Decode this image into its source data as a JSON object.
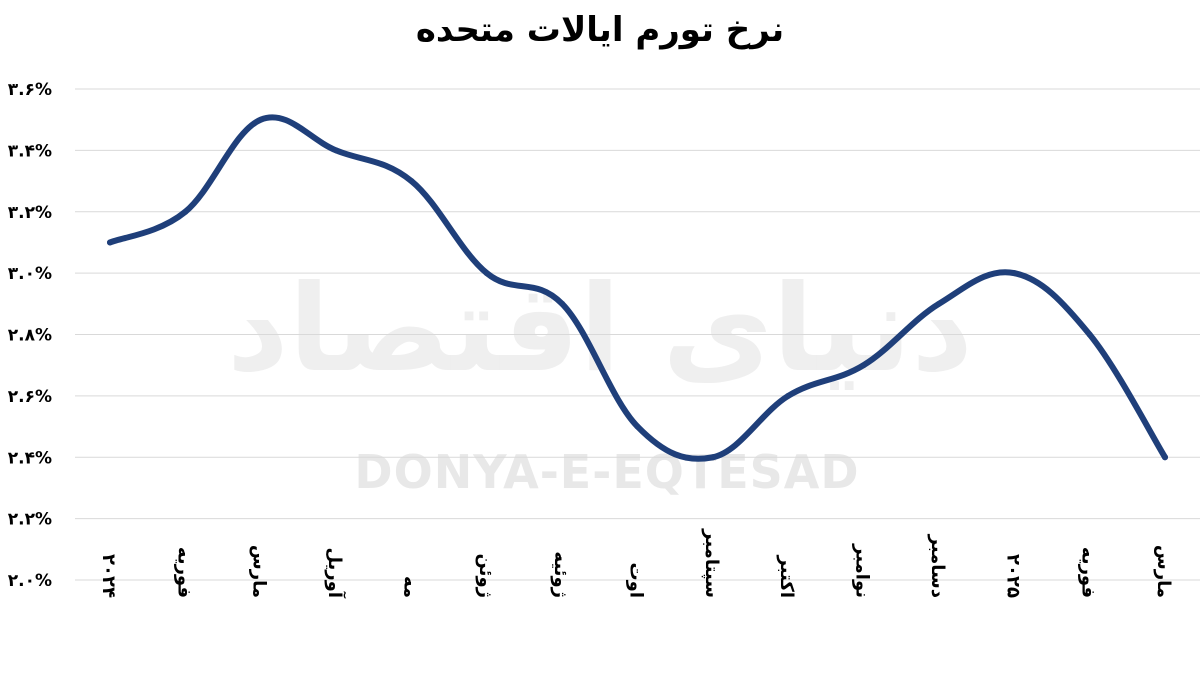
{
  "chart_data": {
    "type": "line",
    "title": "نرخ تورم ایالات متحده",
    "xlabel": "",
    "ylabel": "",
    "categories": [
      "۲۰۲۴",
      "فوریه",
      "مارس",
      "آوریل",
      "مه",
      "ژوئن",
      "ژوئیه",
      "اوت",
      "سپتامبر",
      "اکتبر",
      "نوامبر",
      "دسامبر",
      "۲۰۲۵",
      "فوریه",
      "مارس"
    ],
    "series": [
      {
        "name": "",
        "values": [
          3.1,
          3.2,
          3.5,
          3.4,
          3.3,
          3.0,
          2.9,
          2.5,
          2.4,
          2.6,
          2.7,
          2.9,
          3.0,
          2.8,
          2.4
        ]
      }
    ],
    "ylim": [
      2.0,
      3.6
    ],
    "yticks": [
      2.0,
      2.2,
      2.4,
      2.6,
      2.8,
      3.0,
      3.2,
      3.4,
      3.6
    ],
    "ytick_labels": [
      "۲.۰%",
      "۲.۲%",
      "۲.۴%",
      "۲.۶%",
      "۲.۸%",
      "۳.۰%",
      "۳.۲%",
      "۳.۴%",
      "۳.۶%"
    ],
    "grid": true,
    "legend": "none",
    "line_color": "#1f3f7a",
    "grid_color": "#d9d9d9"
  },
  "watermark": {
    "text_en": "DONYA-E-EQTESAD",
    "text_fa": "دنیای اقتصاد"
  }
}
